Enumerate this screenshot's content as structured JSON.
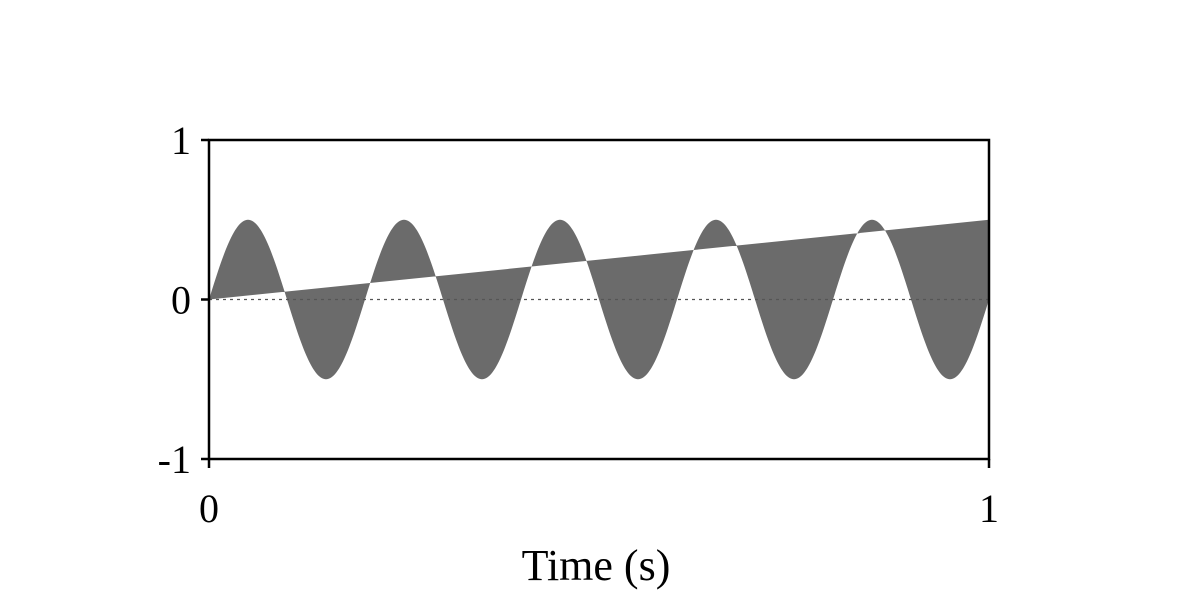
{
  "chart_data": {
    "type": "area",
    "title": "",
    "xlabel": "Time (s)",
    "ylabel": "",
    "xlim": [
      0,
      1
    ],
    "ylim": [
      -1,
      1
    ],
    "x_ticks": [
      "0",
      "1"
    ],
    "y_ticks": [
      "1",
      "0",
      "-1"
    ],
    "grid": false,
    "legend": "none",
    "series": [
      {
        "role": "sine wave",
        "amplitude": 0.5,
        "frequency_hz": 5,
        "x": [
          0,
          0.05,
          0.1,
          0.15,
          0.2,
          0.25,
          0.3,
          0.35,
          0.4,
          0.45,
          0.5,
          0.55,
          0.6,
          0.65,
          0.7,
          0.75,
          0.8,
          0.85,
          0.9,
          0.95,
          1.0
        ],
        "y": [
          0,
          0.5,
          0,
          -0.5,
          0,
          0.5,
          0,
          -0.5,
          0,
          0.5,
          0,
          -0.5,
          0,
          0.5,
          0,
          -0.5,
          0,
          0.5,
          0,
          -0.5,
          0
        ]
      },
      {
        "role": "linear ramp",
        "x": [
          0,
          1
        ],
        "y": [
          0,
          0.5
        ]
      }
    ],
    "shading": "area between sine wave and linear ramp",
    "reference_line": {
      "y": 0,
      "style": "dotted"
    },
    "colors": {
      "fill": "#6b6b6b",
      "axes": "#000000",
      "reference": "#555555"
    }
  }
}
